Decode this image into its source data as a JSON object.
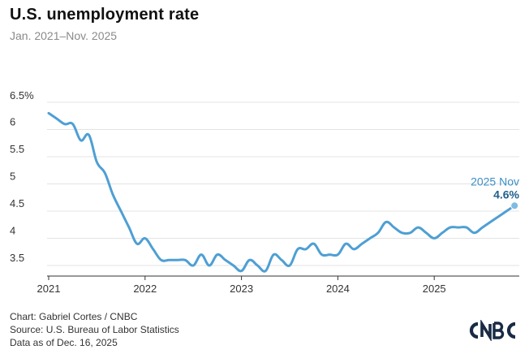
{
  "title": "U.S. unemployment rate",
  "subtitle": "Jan. 2021–Nov. 2025",
  "footer": {
    "credit": "Chart: Gabriel Cortes / CNBC",
    "source": "Source: U.S. Bureau of Labor Statistics",
    "data_as_of": "Data as of Dec. 16, 2025"
  },
  "logo_icon": "cnbc-logo-icon",
  "colors": {
    "line": "#4e9fd4",
    "callout_value": "#1d5f8c",
    "callout_label": "#3a8fc7"
  },
  "chart_data": {
    "type": "line",
    "title": "U.S. unemployment rate",
    "subtitle": "Jan. 2021–Nov. 2025",
    "xlabel": "",
    "ylabel": "",
    "ylim": [
      3.4,
      6.6
    ],
    "y_ticks": [
      3.5,
      4,
      4.5,
      5,
      5.5,
      6,
      6.5
    ],
    "y_tick_labels": [
      "3.5",
      "4",
      "4.5",
      "5",
      "5.5",
      "6",
      "6.5%"
    ],
    "x_ticks": [
      "2021",
      "2022",
      "2023",
      "2024",
      "2025"
    ],
    "grid": "horizontal",
    "callout": {
      "label": "2025 Nov",
      "value": "4.6%"
    },
    "series": [
      {
        "x": [
          "2021-01",
          "2021-02",
          "2021-03",
          "2021-04",
          "2021-05",
          "2021-06",
          "2021-07",
          "2021-08",
          "2021-09",
          "2021-10",
          "2021-11",
          "2021-12",
          "2022-01",
          "2022-02",
          "2022-03",
          "2022-04",
          "2022-05",
          "2022-06",
          "2022-07",
          "2022-08",
          "2022-09",
          "2022-10",
          "2022-11",
          "2022-12",
          "2023-01",
          "2023-02",
          "2023-03",
          "2023-04",
          "2023-05",
          "2023-06",
          "2023-07",
          "2023-08",
          "2023-09",
          "2023-10",
          "2023-11",
          "2023-12",
          "2024-01",
          "2024-02",
          "2024-03",
          "2024-04",
          "2024-05",
          "2024-06",
          "2024-07",
          "2024-08",
          "2024-09",
          "2024-10",
          "2024-11",
          "2024-12",
          "2025-01",
          "2025-02",
          "2025-03",
          "2025-04",
          "2025-05",
          "2025-06",
          "2025-07",
          "2025-08",
          "2025-09",
          "2025-10",
          "2025-11"
        ],
        "values": [
          6.3,
          6.2,
          6.1,
          6.1,
          5.8,
          5.9,
          5.4,
          5.2,
          4.8,
          4.5,
          4.2,
          3.9,
          4.0,
          3.8,
          3.6,
          3.6,
          3.6,
          3.6,
          3.5,
          3.7,
          3.5,
          3.7,
          3.6,
          3.5,
          3.4,
          3.6,
          3.5,
          3.4,
          3.7,
          3.6,
          3.5,
          3.8,
          3.8,
          3.9,
          3.7,
          3.7,
          3.7,
          3.9,
          3.8,
          3.9,
          4.0,
          4.1,
          4.3,
          4.2,
          4.1,
          4.1,
          4.2,
          4.1,
          4.0,
          4.1,
          4.2,
          4.2,
          4.2,
          4.1,
          4.2,
          4.3,
          4.4,
          4.5,
          4.6
        ]
      }
    ]
  }
}
